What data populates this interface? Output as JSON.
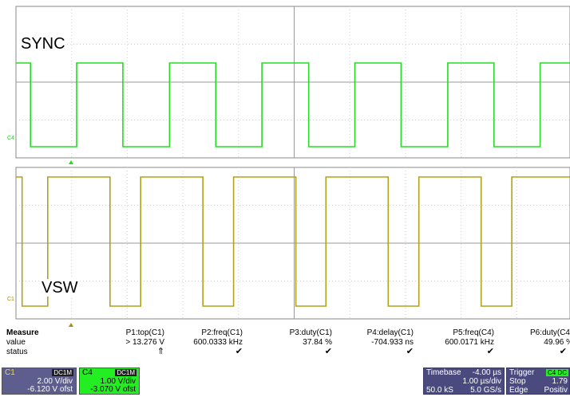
{
  "top_trace": {
    "label": "SYNC",
    "channel_tag": "C4",
    "color": "#22dd22"
  },
  "bottom_trace": {
    "label": "VSW",
    "channel_tag": "C1",
    "color": "#b0a21a"
  },
  "measure": {
    "header": "Measure",
    "row_labels": [
      "value",
      "status"
    ],
    "params": [
      {
        "name": "P1:top(C1)",
        "value": "> 13.276 V",
        "status": "⇑"
      },
      {
        "name": "P2:freq(C1)",
        "value": "600.0333 kHz",
        "status": "✔"
      },
      {
        "name": "P3:duty(C1)",
        "value": "37.84 %",
        "status": "✔"
      },
      {
        "name": "P4:delay(C1)",
        "value": "-704.933 ns",
        "status": "✔"
      },
      {
        "name": "P5:freq(C4)",
        "value": "600.0171 kHz",
        "status": "✔"
      },
      {
        "name": "P6:duty(C4",
        "value": "49.96 %",
        "status": "✔"
      }
    ]
  },
  "channels": [
    {
      "name": "C1",
      "coupling": "DC1M",
      "vdiv": "2.00 V/div",
      "offset": "-6.120 V ofst",
      "bg": "#5e5e8e",
      "fg": "#ffffff",
      "title_bg": "#b0a21a"
    },
    {
      "name": "C4",
      "coupling": "DC1M",
      "vdiv": "1.00 V/div",
      "offset": "-3.070 V ofst",
      "bg": "#22ee22",
      "fg": "#000000",
      "title_bg": "#22ee22"
    }
  ],
  "timebase": {
    "label": "Timebase",
    "delay": "-4.00 µs",
    "tdiv": "1.00 µs/div",
    "samples": "50.0 kS",
    "rate": "5.0 GS/s"
  },
  "trigger": {
    "label": "Trigger",
    "badge": "C4 DC",
    "mode": "Stop",
    "level": "1.79",
    "type": "Edge",
    "slope": "Positiv"
  },
  "signal": {
    "period_us": 1.6667,
    "sync_edges_us": [
      0.42,
      1.25,
      2.08,
      2.92,
      3.75,
      4.58,
      5.42,
      6.25,
      7.08,
      7.92,
      8.75,
      9.58
    ],
    "vsw_rise_us": [
      0.58,
      2.25,
      3.92,
      5.58,
      7.25,
      8.92
    ],
    "vsw_high_us": 0.63,
    "screen_span_us": 10.0
  }
}
